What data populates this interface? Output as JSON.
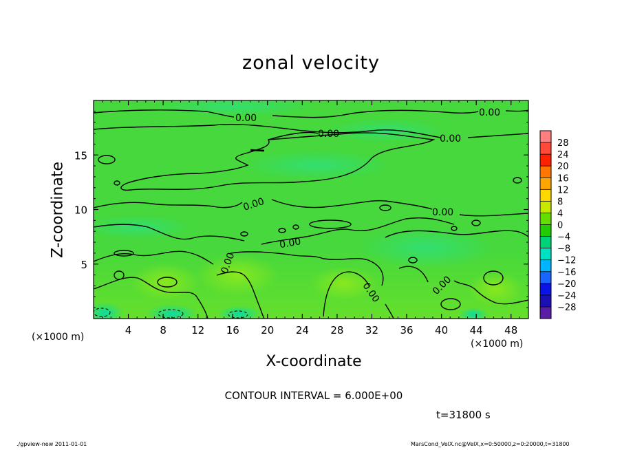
{
  "chart_data": {
    "type": "heatmap",
    "title": "zonal velocity",
    "xlabel": "X-coordinate",
    "ylabel": "Z-coordinate",
    "x_unit": "(×1000 m)",
    "y_unit": "(×1000 m)",
    "xlim": [
      0,
      50
    ],
    "ylim": [
      0,
      20
    ],
    "x_ticks": [
      4,
      8,
      12,
      16,
      20,
      24,
      28,
      32,
      36,
      40,
      44,
      48
    ],
    "y_ticks": [
      5,
      10,
      15
    ],
    "contour_interval_text": "CONTOUR INTERVAL = 6.000E+00",
    "contour_labels": [
      "0.00",
      "0.00",
      "0.00",
      "0.00",
      "0.00",
      "0.00",
      "0.00",
      "0.00",
      "0.00",
      "0.00"
    ],
    "time_text": "t=31800 s",
    "colorbar": {
      "levels": [
        28,
        24,
        20,
        16,
        12,
        8,
        4,
        0,
        -4,
        -8,
        -12,
        -16,
        -20,
        -24,
        -28
      ],
      "colors": [
        "#ff7f80",
        "#ff4a3a",
        "#ff2200",
        "#ff7700",
        "#ffa600",
        "#ffd800",
        "#c8e800",
        "#66dd00",
        "#22cc00",
        "#00d277",
        "#00e0c2",
        "#00b4ff",
        "#1a64ff",
        "#0a14e6",
        "#1a10b4",
        "#5a1ea4"
      ]
    }
  },
  "footer": {
    "left": "./gpview-new   2011-01-01",
    "right": "MarsCond_VelX.nc@VelX,x=0:50000,z=0:20000,t=31800"
  }
}
